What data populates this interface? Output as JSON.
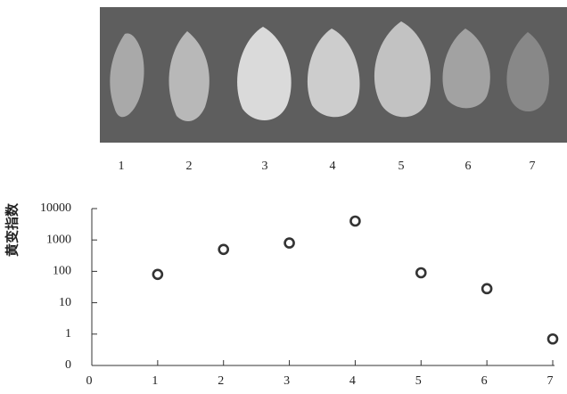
{
  "photo": {
    "labels": [
      "1",
      "2",
      "3",
      "4",
      "5",
      "6",
      "7"
    ]
  },
  "chart_data": {
    "type": "scatter",
    "y_label": "黄变指数",
    "x": [
      1,
      2,
      3,
      4,
      5,
      6,
      7
    ],
    "series": [
      {
        "color": "#333333",
        "values": [
          80,
          500,
          800,
          4000,
          90,
          28,
          0.7
        ]
      }
    ],
    "xlim": [
      0,
      7
    ],
    "xticks": [
      0,
      1,
      2,
      3,
      4,
      5,
      6,
      7
    ],
    "ylim": [
      0,
      10000
    ],
    "yticks": [
      0,
      1,
      10,
      100,
      1000,
      10000
    ],
    "y_scale": "log",
    "grid": false
  }
}
